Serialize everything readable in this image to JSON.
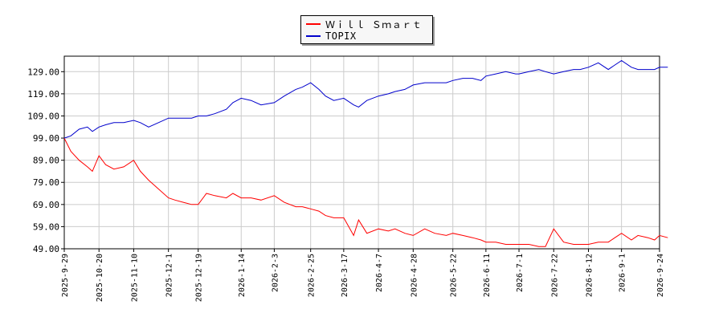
{
  "chart_data": {
    "type": "line",
    "title": "",
    "xlabel": "",
    "ylabel": "",
    "ylim": [
      49,
      136
    ],
    "yticks": [
      "49.00",
      "59.00",
      "69.00",
      "79.00",
      "89.00",
      "99.00",
      "109.00",
      "119.00",
      "129.00"
    ],
    "xticks": [
      "2025-9-29",
      "2025-10-20",
      "2025-11-10",
      "2025-12-1",
      "2025-12-19",
      "2026-1-14",
      "2026-2-3",
      "2026-2-25",
      "2026-3-17",
      "2026-4-7",
      "2026-4-28",
      "2026-5-22",
      "2026-6-11",
      "2026-7-1",
      "2026-7-22",
      "2026-8-12",
      "2026-9-1",
      "2026-9-24"
    ],
    "grid": true,
    "legend": "top-center",
    "series": [
      {
        "name": "Ｗｉｌｌ Ｓｍａｒｔ",
        "color": "#ff0000",
        "x": [
          "2025-9-29",
          "2025-10-3",
          "2025-10-8",
          "2025-10-13",
          "2025-10-16",
          "2025-10-20",
          "2025-10-24",
          "2025-10-29",
          "2025-11-4",
          "2025-11-10",
          "2025-11-14",
          "2025-11-19",
          "2025-11-25",
          "2025-12-1",
          "2025-12-5",
          "2025-12-10",
          "2025-12-15",
          "2025-12-19",
          "2025-12-24",
          "2025-12-29",
          "2026-1-5",
          "2026-1-9",
          "2026-1-14",
          "2026-1-20",
          "2026-1-26",
          "2026-2-3",
          "2026-2-9",
          "2026-2-16",
          "2026-2-20",
          "2026-2-25",
          "2026-3-2",
          "2026-3-6",
          "2026-3-11",
          "2026-3-17",
          "2026-3-23",
          "2026-3-26",
          "2026-3-31",
          "2026-4-7",
          "2026-4-13",
          "2026-4-17",
          "2026-4-23",
          "2026-4-28",
          "2026-5-5",
          "2026-5-11",
          "2026-5-18",
          "2026-5-22",
          "2026-5-28",
          "2026-6-3",
          "2026-6-8",
          "2026-6-11",
          "2026-6-17",
          "2026-6-23",
          "2026-6-29",
          "2026-7-1",
          "2026-7-7",
          "2026-7-13",
          "2026-7-17",
          "2026-7-22",
          "2026-7-28",
          "2026-8-3",
          "2026-8-7",
          "2026-8-12",
          "2026-8-18",
          "2026-8-24",
          "2026-8-28",
          "2026-9-1",
          "2026-9-7",
          "2026-9-11",
          "2026-9-17",
          "2026-9-21",
          "2026-9-24",
          "2026-9-29"
        ],
        "values": [
          99,
          93,
          89,
          86,
          84,
          91,
          87,
          85,
          86,
          89,
          84,
          80,
          76,
          72,
          71,
          70,
          69,
          69,
          74,
          73,
          72,
          74,
          72,
          72,
          71,
          73,
          70,
          68,
          68,
          67,
          66,
          64,
          63,
          63,
          55,
          62,
          56,
          58,
          57,
          58,
          56,
          55,
          58,
          56,
          55,
          56,
          55,
          54,
          53,
          52,
          52,
          51,
          51,
          51,
          51,
          50,
          50,
          58,
          52,
          51,
          51,
          51,
          52,
          52,
          54,
          56,
          53,
          55,
          54,
          53,
          55,
          54
        ]
      },
      {
        "name": "TOPIX",
        "color": "#0000cc",
        "x": [
          "2025-9-29",
          "2025-10-3",
          "2025-10-8",
          "2025-10-13",
          "2025-10-16",
          "2025-10-20",
          "2025-10-24",
          "2025-10-29",
          "2025-11-4",
          "2025-11-10",
          "2025-11-14",
          "2025-11-19",
          "2025-11-25",
          "2025-12-1",
          "2025-12-5",
          "2025-12-10",
          "2025-12-15",
          "2025-12-19",
          "2025-12-24",
          "2025-12-29",
          "2026-1-5",
          "2026-1-9",
          "2026-1-14",
          "2026-1-20",
          "2026-1-26",
          "2026-2-3",
          "2026-2-9",
          "2026-2-16",
          "2026-2-20",
          "2026-2-25",
          "2026-3-2",
          "2026-3-6",
          "2026-3-11",
          "2026-3-17",
          "2026-3-23",
          "2026-3-26",
          "2026-3-31",
          "2026-4-7",
          "2026-4-13",
          "2026-4-17",
          "2026-4-23",
          "2026-4-28",
          "2026-5-5",
          "2026-5-11",
          "2026-5-18",
          "2026-5-22",
          "2026-5-28",
          "2026-6-3",
          "2026-6-8",
          "2026-6-11",
          "2026-6-17",
          "2026-6-23",
          "2026-6-29",
          "2026-7-1",
          "2026-7-7",
          "2026-7-13",
          "2026-7-17",
          "2026-7-22",
          "2026-7-28",
          "2026-8-3",
          "2026-8-7",
          "2026-8-12",
          "2026-8-18",
          "2026-8-24",
          "2026-8-28",
          "2026-9-1",
          "2026-9-7",
          "2026-9-11",
          "2026-9-17",
          "2026-9-21",
          "2026-9-24",
          "2026-9-29"
        ],
        "values": [
          99,
          100,
          103,
          104,
          102,
          104,
          105,
          106,
          106,
          107,
          106,
          104,
          106,
          108,
          108,
          108,
          108,
          109,
          109,
          110,
          112,
          115,
          117,
          116,
          114,
          115,
          118,
          121,
          122,
          124,
          121,
          118,
          116,
          117,
          114,
          113,
          116,
          118,
          119,
          120,
          121,
          123,
          124,
          124,
          124,
          125,
          126,
          126,
          125,
          127,
          128,
          129,
          128,
          128,
          129,
          130,
          129,
          128,
          129,
          130,
          130,
          131,
          133,
          130,
          132,
          134,
          131,
          130,
          130,
          130,
          131,
          131
        ]
      }
    ]
  }
}
